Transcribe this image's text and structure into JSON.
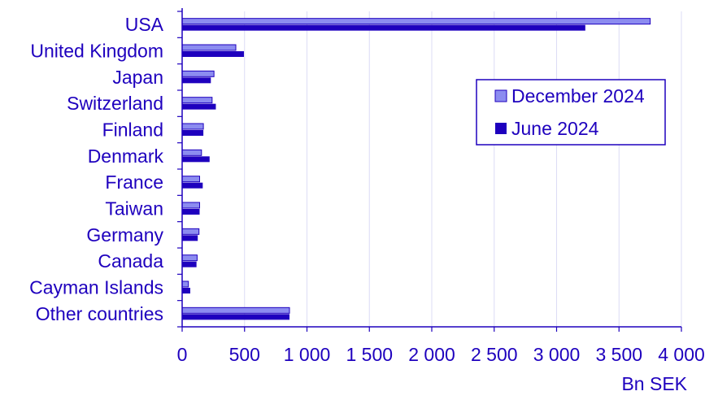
{
  "chart_data": {
    "type": "bar",
    "orientation": "horizontal",
    "categories": [
      "USA",
      "United Kingdom",
      "Japan",
      "Switzerland",
      "Finland",
      "Denmark",
      "France",
      "Taiwan",
      "Germany",
      "Canada",
      "Cayman Islands",
      "Other countries"
    ],
    "series": [
      {
        "name": "December 2024",
        "values": [
          3750,
          430,
          255,
          240,
          170,
          155,
          140,
          140,
          135,
          120,
          50,
          860
        ]
      },
      {
        "name": "June 2024",
        "values": [
          3230,
          495,
          230,
          270,
          170,
          220,
          165,
          140,
          125,
          115,
          65,
          860
        ]
      }
    ],
    "xlim": [
      0,
      4000
    ],
    "xticks": [
      0,
      500,
      1000,
      1500,
      2000,
      2500,
      3000,
      3500,
      4000
    ],
    "xtick_labels": [
      "0",
      "500",
      "1 000",
      "1 500",
      "2 000",
      "2 500",
      "3 000",
      "3 500",
      "4 000"
    ],
    "xlabel": "Bn SEK",
    "grid": "vertical",
    "legend_position": "right"
  },
  "colors": {
    "december": "#8c8cf0",
    "june": "#1e00be",
    "text": "#1e00be",
    "grid": "#dcdcf5"
  }
}
